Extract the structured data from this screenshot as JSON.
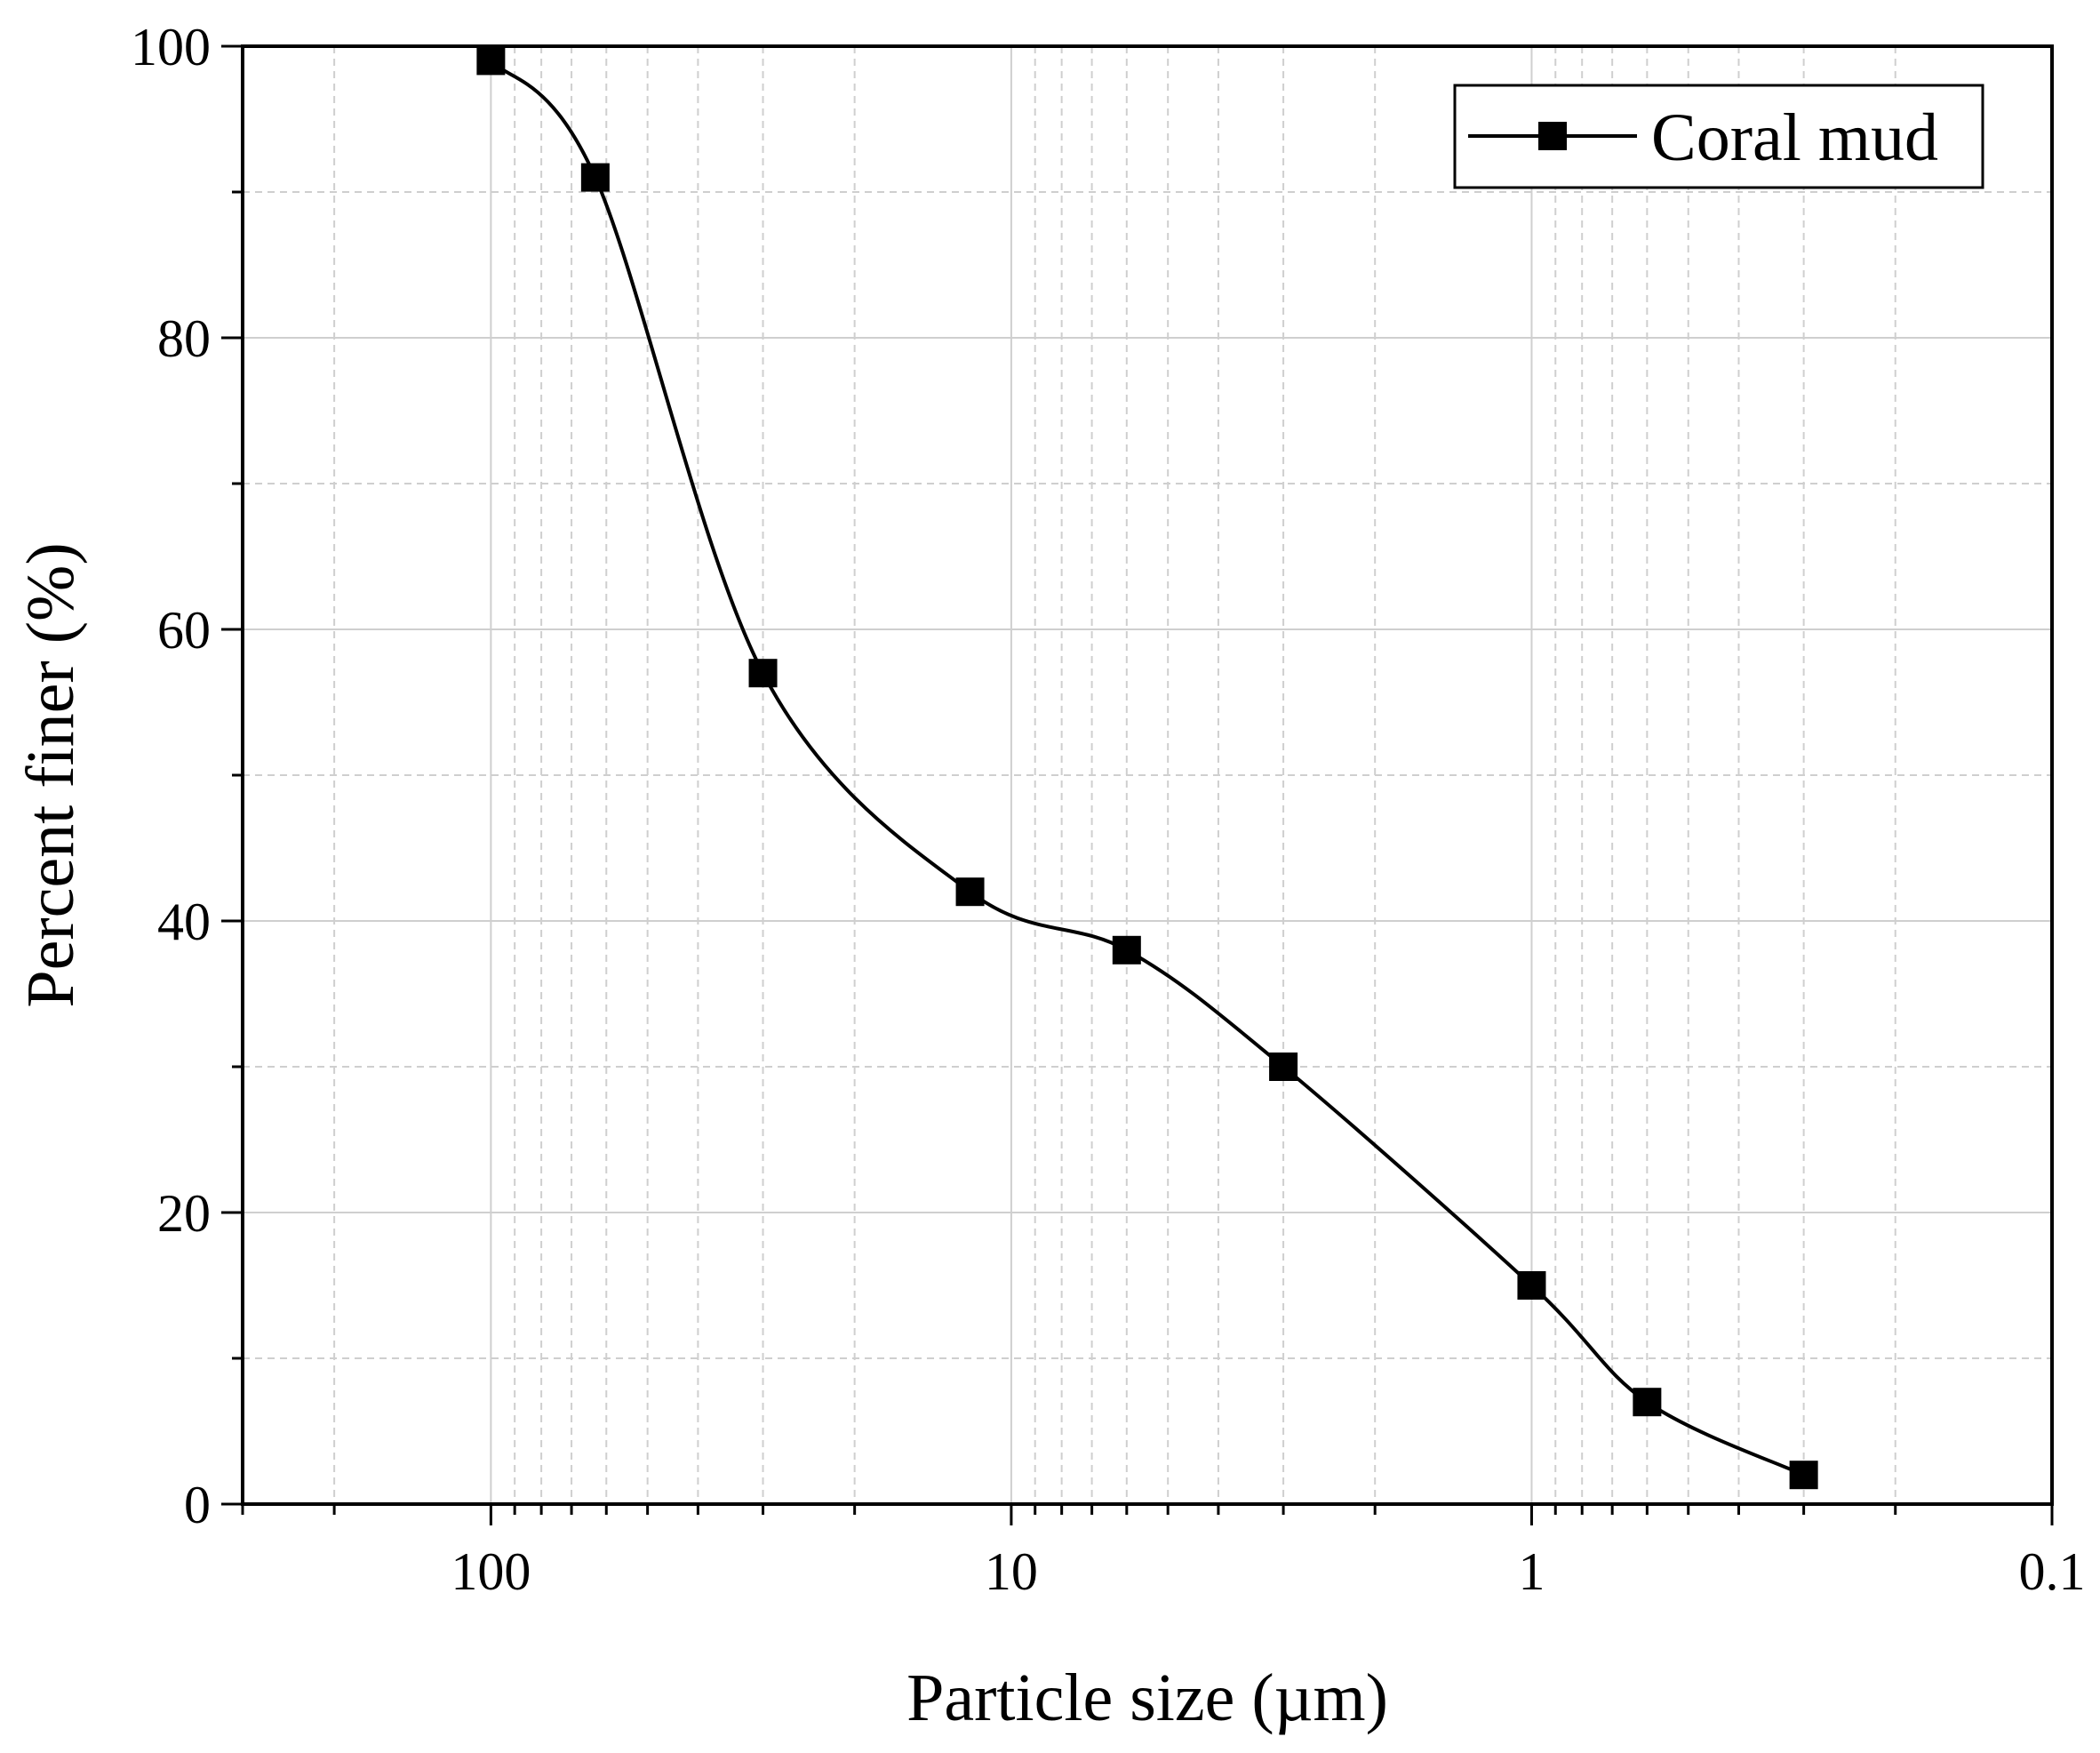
{
  "chart_data": {
    "type": "line",
    "title": "",
    "xlabel": "Particle size (µm)",
    "ylabel": "Percent finer (%)",
    "x_scale": "log",
    "x_reversed": true,
    "xlim": [
      300,
      0.1
    ],
    "ylim": [
      0,
      100
    ],
    "grid": true,
    "legend_position": "top-right",
    "x_ticks": [
      {
        "value": 100,
        "label": "100"
      },
      {
        "value": 10,
        "label": "10"
      },
      {
        "value": 1,
        "label": "1"
      },
      {
        "value": 0.1,
        "label": "0.1"
      }
    ],
    "y_ticks": [
      {
        "value": 0,
        "label": "0"
      },
      {
        "value": 20,
        "label": "20"
      },
      {
        "value": 40,
        "label": "40"
      },
      {
        "value": 60,
        "label": "60"
      },
      {
        "value": 80,
        "label": "80"
      },
      {
        "value": 100,
        "label": "100"
      }
    ],
    "series": [
      {
        "name": "Coral mud",
        "color": "#000000",
        "marker": "square",
        "x": [
          100,
          63,
          30,
          12,
          6,
          3,
          1,
          0.6,
          0.3
        ],
        "y": [
          99,
          91,
          57,
          42,
          38,
          30,
          15,
          7,
          2
        ]
      }
    ]
  }
}
